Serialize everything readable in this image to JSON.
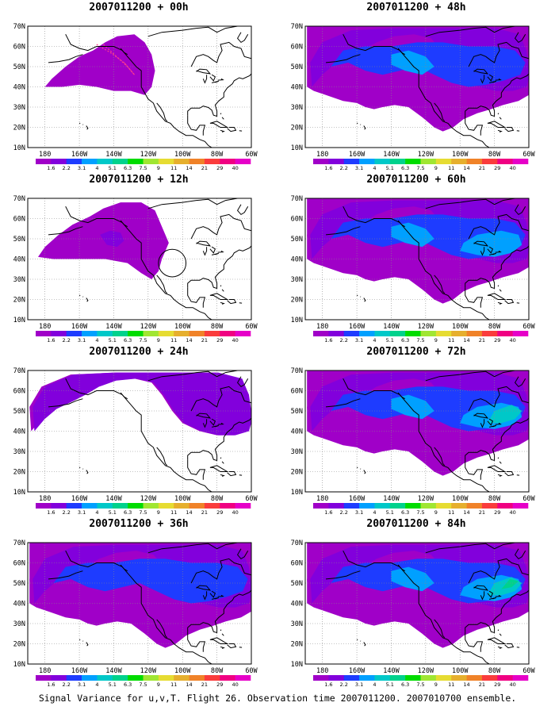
{
  "figure": {
    "caption": "Signal Variance for u,v,T. Flight 26. Observation time 2007011200. 2007010700 ensemble."
  },
  "axes": {
    "y_labels": [
      "70N",
      "60N",
      "50N",
      "40N",
      "30N",
      "20N",
      "10N"
    ],
    "x_labels": [
      "180",
      "160W",
      "140W",
      "120W",
      "100W",
      "80W",
      "60W"
    ]
  },
  "colorbar": {
    "labels": [
      "1.6",
      "2.2",
      "3.1",
      "4",
      "5.1",
      "6.3",
      "7.5",
      "9",
      "11",
      "14",
      "21",
      "29",
      "40"
    ],
    "colors": [
      "#a000c8",
      "#8200dc",
      "#1e3cff",
      "#00a0ff",
      "#00c8c8",
      "#00d28c",
      "#00dc00",
      "#a0e632",
      "#e6dc32",
      "#e6af2d",
      "#f08228",
      "#fa3c3c",
      "#f00082",
      "#e600c8"
    ]
  },
  "panels": [
    {
      "title": "2007011200 + 00h",
      "lead_hours": 0,
      "intensity": 0
    },
    {
      "title": "2007011200 + 48h",
      "lead_hours": 48,
      "intensity": 4
    },
    {
      "title": "2007011200 + 12h",
      "lead_hours": 12,
      "intensity": 1
    },
    {
      "title": "2007011200 + 60h",
      "lead_hours": 60,
      "intensity": 5
    },
    {
      "title": "2007011200 + 24h",
      "lead_hours": 24,
      "intensity": 2
    },
    {
      "title": "2007011200 + 72h",
      "lead_hours": 72,
      "intensity": 6
    },
    {
      "title": "2007011200 + 36h",
      "lead_hours": 36,
      "intensity": 3
    },
    {
      "title": "2007011200 + 84h",
      "lead_hours": 84,
      "intensity": 7
    }
  ]
}
